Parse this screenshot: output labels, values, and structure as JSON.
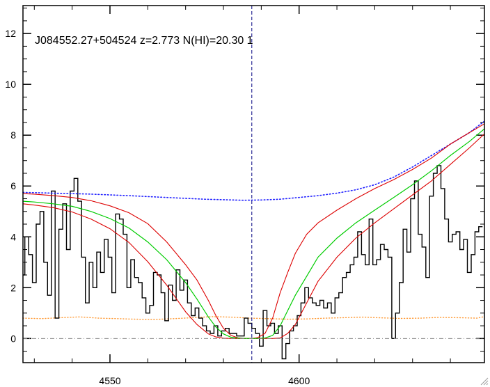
{
  "chart_data": {
    "type": "line",
    "title": "J084552.27+504524 z=2.773 N(HI)=20.30 1",
    "xlabel": "",
    "ylabel": "",
    "xlim": [
      4527,
      4649
    ],
    "ylim": [
      -0.95,
      13.1
    ],
    "x_tick_labels": [
      "4550",
      "4600"
    ],
    "x_ticks": [
      4550,
      4600
    ],
    "y_tick_labels": [
      "0",
      "2",
      "4",
      "6",
      "8",
      "10",
      "12"
    ],
    "y_ticks": [
      0,
      2,
      4,
      6,
      8,
      10,
      12
    ],
    "grid": false,
    "center_line_x": 4587.5,
    "zero_line_y": 0,
    "colors": {
      "flux": "#000000",
      "fit": "#00cc00",
      "fit_bounds": "#dd0000",
      "continuum": "#2020ff",
      "error": "#ff9933",
      "center_line": "#000080",
      "zero_line": "#888888"
    },
    "series": [
      {
        "role": "flux",
        "style": "steps",
        "x": [
          4527,
          4528,
          4529,
          4530,
          4531,
          4532,
          4533,
          4534,
          4535,
          4536,
          4537,
          4538,
          4539,
          4540,
          4541,
          4542,
          4543,
          4544,
          4545,
          4546,
          4547,
          4548,
          4549,
          4550,
          4551,
          4552,
          4553,
          4554,
          4555,
          4556,
          4557,
          4558,
          4559,
          4560,
          4561,
          4562,
          4563,
          4564,
          4565,
          4566,
          4567,
          4568,
          4569,
          4570,
          4571,
          4572,
          4573,
          4574,
          4575,
          4576,
          4577,
          4578,
          4579,
          4580,
          4581,
          4582,
          4583,
          4584,
          4585,
          4586,
          4587,
          4588,
          4589,
          4590,
          4591,
          4592,
          4593,
          4594,
          4595,
          4596,
          4597,
          4598,
          4599,
          4600,
          4601,
          4602,
          4603,
          4604,
          4605,
          4606,
          4607,
          4608,
          4609,
          4610,
          4611,
          4612,
          4613,
          4614,
          4615,
          4616,
          4617,
          4618,
          4619,
          4620,
          4621,
          4622,
          4623,
          4624,
          4625,
          4626,
          4627,
          4628,
          4629,
          4630,
          4631,
          4632,
          4633,
          4634,
          4635,
          4636,
          4637,
          4638,
          4639,
          4640,
          4641,
          4642,
          4643,
          4644,
          4645,
          4646,
          4647,
          4648
        ],
        "y": [
          2.5,
          4.0,
          3.3,
          2.2,
          4.5,
          5.0,
          3.0,
          1.7,
          5.8,
          0.8,
          4.3,
          5.3,
          3.5,
          5.8,
          6.3,
          5.4,
          3.2,
          1.4,
          3.0,
          2.0,
          3.4,
          2.6,
          3.9,
          3.2,
          1.8,
          4.9,
          4.7,
          4.1,
          2.0,
          3.1,
          2.4,
          2.2,
          1.6,
          1.0,
          1.3,
          2.6,
          2.5,
          1.8,
          0.7,
          2.1,
          1.5,
          2.7,
          1.9,
          2.3,
          1.4,
          0.9,
          1.2,
          0.8,
          0.5,
          0.3,
          0.2,
          0.5,
          0.1,
          0.3,
          0.4,
          0.2,
          0.2,
          0.1,
          0.1,
          0.8,
          0.6,
          0.4,
          0.2,
          -0.3,
          1.1,
          0.5,
          0.6,
          0.2,
          0.5,
          -0.8,
          -0.2,
          0.3,
          0.5,
          0.9,
          1.4,
          2.0,
          1.6,
          1.4,
          1.3,
          1.5,
          1.2,
          1.4,
          1.0,
          1.6,
          1.8,
          2.4,
          2.6,
          2.9,
          3.2,
          4.2,
          3.3,
          2.9,
          4.7,
          2.9,
          3.1,
          3.7,
          3.5,
          3.2,
          0.0,
          1.0,
          2.2,
          4.3,
          3.4,
          5.5,
          6.2,
          4.1,
          3.6,
          2.4,
          5.6,
          6.5,
          6.8,
          5.9,
          4.7,
          3.8,
          4.1,
          4.2,
          3.5,
          3.9,
          2.6,
          3.3,
          4.2,
          4.4
        ]
      },
      {
        "role": "fit",
        "style": "line",
        "x": [
          4527,
          4530,
          4535,
          4540,
          4545,
          4550,
          4555,
          4560,
          4565,
          4570,
          4573,
          4576,
          4578,
          4580,
          4582,
          4584,
          4586,
          4587.5,
          4589,
          4591,
          4593,
          4595,
          4597,
          4599,
          4602,
          4605,
          4610,
          4615,
          4620,
          4625,
          4630,
          4635,
          4640,
          4645,
          4649
        ],
        "y": [
          5.4,
          5.37,
          5.3,
          5.2,
          5.0,
          4.72,
          4.35,
          3.8,
          3.1,
          2.2,
          1.55,
          0.85,
          0.45,
          0.18,
          0.05,
          0.01,
          0.0,
          0.0,
          0.0,
          0.02,
          0.12,
          0.5,
          1.1,
          1.7,
          2.45,
          3.2,
          3.95,
          4.55,
          5.05,
          5.55,
          6.05,
          6.6,
          7.2,
          7.75,
          8.25
        ]
      },
      {
        "role": "fit-upper",
        "style": "line",
        "x": [
          4527,
          4530,
          4535,
          4540,
          4545,
          4550,
          4555,
          4560,
          4565,
          4570,
          4573,
          4576,
          4578,
          4580,
          4582,
          4584,
          4586,
          4587.5,
          4589,
          4591,
          4593,
          4595,
          4597,
          4599,
          4602,
          4605,
          4610,
          4615,
          4620,
          4625,
          4630,
          4635,
          4640,
          4645,
          4649
        ],
        "y": [
          5.7,
          5.68,
          5.62,
          5.55,
          5.42,
          5.22,
          4.95,
          4.52,
          3.8,
          2.9,
          2.3,
          1.5,
          0.9,
          0.4,
          0.12,
          0.02,
          0.0,
          0.0,
          0.03,
          0.2,
          0.8,
          1.8,
          2.6,
          3.35,
          4.1,
          4.55,
          5.05,
          5.5,
          5.9,
          6.25,
          6.65,
          7.1,
          7.65,
          8.1,
          8.45
        ]
      },
      {
        "role": "fit-lower",
        "style": "line",
        "x": [
          4527,
          4530,
          4535,
          4540,
          4545,
          4550,
          4555,
          4560,
          4565,
          4570,
          4573,
          4576,
          4578,
          4580,
          4582,
          4584,
          4586,
          4587.5,
          4589,
          4591,
          4593,
          4595,
          4597,
          4599,
          4602,
          4605,
          4610,
          4615,
          4620,
          4625,
          4630,
          4635,
          4640,
          4645,
          4649
        ],
        "y": [
          5.3,
          5.25,
          5.15,
          4.98,
          4.7,
          4.32,
          3.78,
          3.02,
          2.1,
          1.05,
          0.55,
          0.18,
          0.06,
          0.01,
          0.0,
          0.0,
          0.0,
          0.0,
          0.0,
          0.0,
          0.0,
          0.02,
          0.2,
          0.55,
          1.4,
          2.25,
          3.2,
          3.95,
          4.55,
          5.1,
          5.65,
          6.2,
          6.85,
          7.5,
          8.05
        ]
      },
      {
        "role": "continuum",
        "style": "dotted",
        "x": [
          4527,
          4535,
          4545,
          4555,
          4565,
          4575,
          4585,
          4590,
          4595,
          4600,
          4605,
          4610,
          4615,
          4620,
          4625,
          4630,
          4635,
          4640,
          4645,
          4649
        ],
        "y": [
          5.75,
          5.72,
          5.68,
          5.62,
          5.55,
          5.48,
          5.44,
          5.45,
          5.48,
          5.55,
          5.62,
          5.72,
          5.85,
          6.05,
          6.35,
          6.75,
          7.2,
          7.65,
          8.1,
          8.55
        ]
      },
      {
        "role": "error",
        "style": "dotted",
        "x": [
          4527,
          4532,
          4537,
          4542,
          4547,
          4552,
          4557,
          4562,
          4567,
          4572,
          4577,
          4582,
          4587,
          4592,
          4597,
          4602,
          4607,
          4612,
          4617,
          4622,
          4627,
          4632,
          4637,
          4642,
          4647,
          4649
        ],
        "y": [
          0.8,
          0.78,
          0.82,
          0.85,
          0.8,
          0.78,
          0.76,
          0.75,
          0.78,
          0.82,
          0.86,
          0.84,
          0.8,
          0.78,
          0.76,
          0.77,
          0.8,
          0.82,
          0.84,
          0.81,
          0.79,
          0.8,
          0.83,
          0.82,
          0.8,
          0.86
        ]
      }
    ]
  }
}
